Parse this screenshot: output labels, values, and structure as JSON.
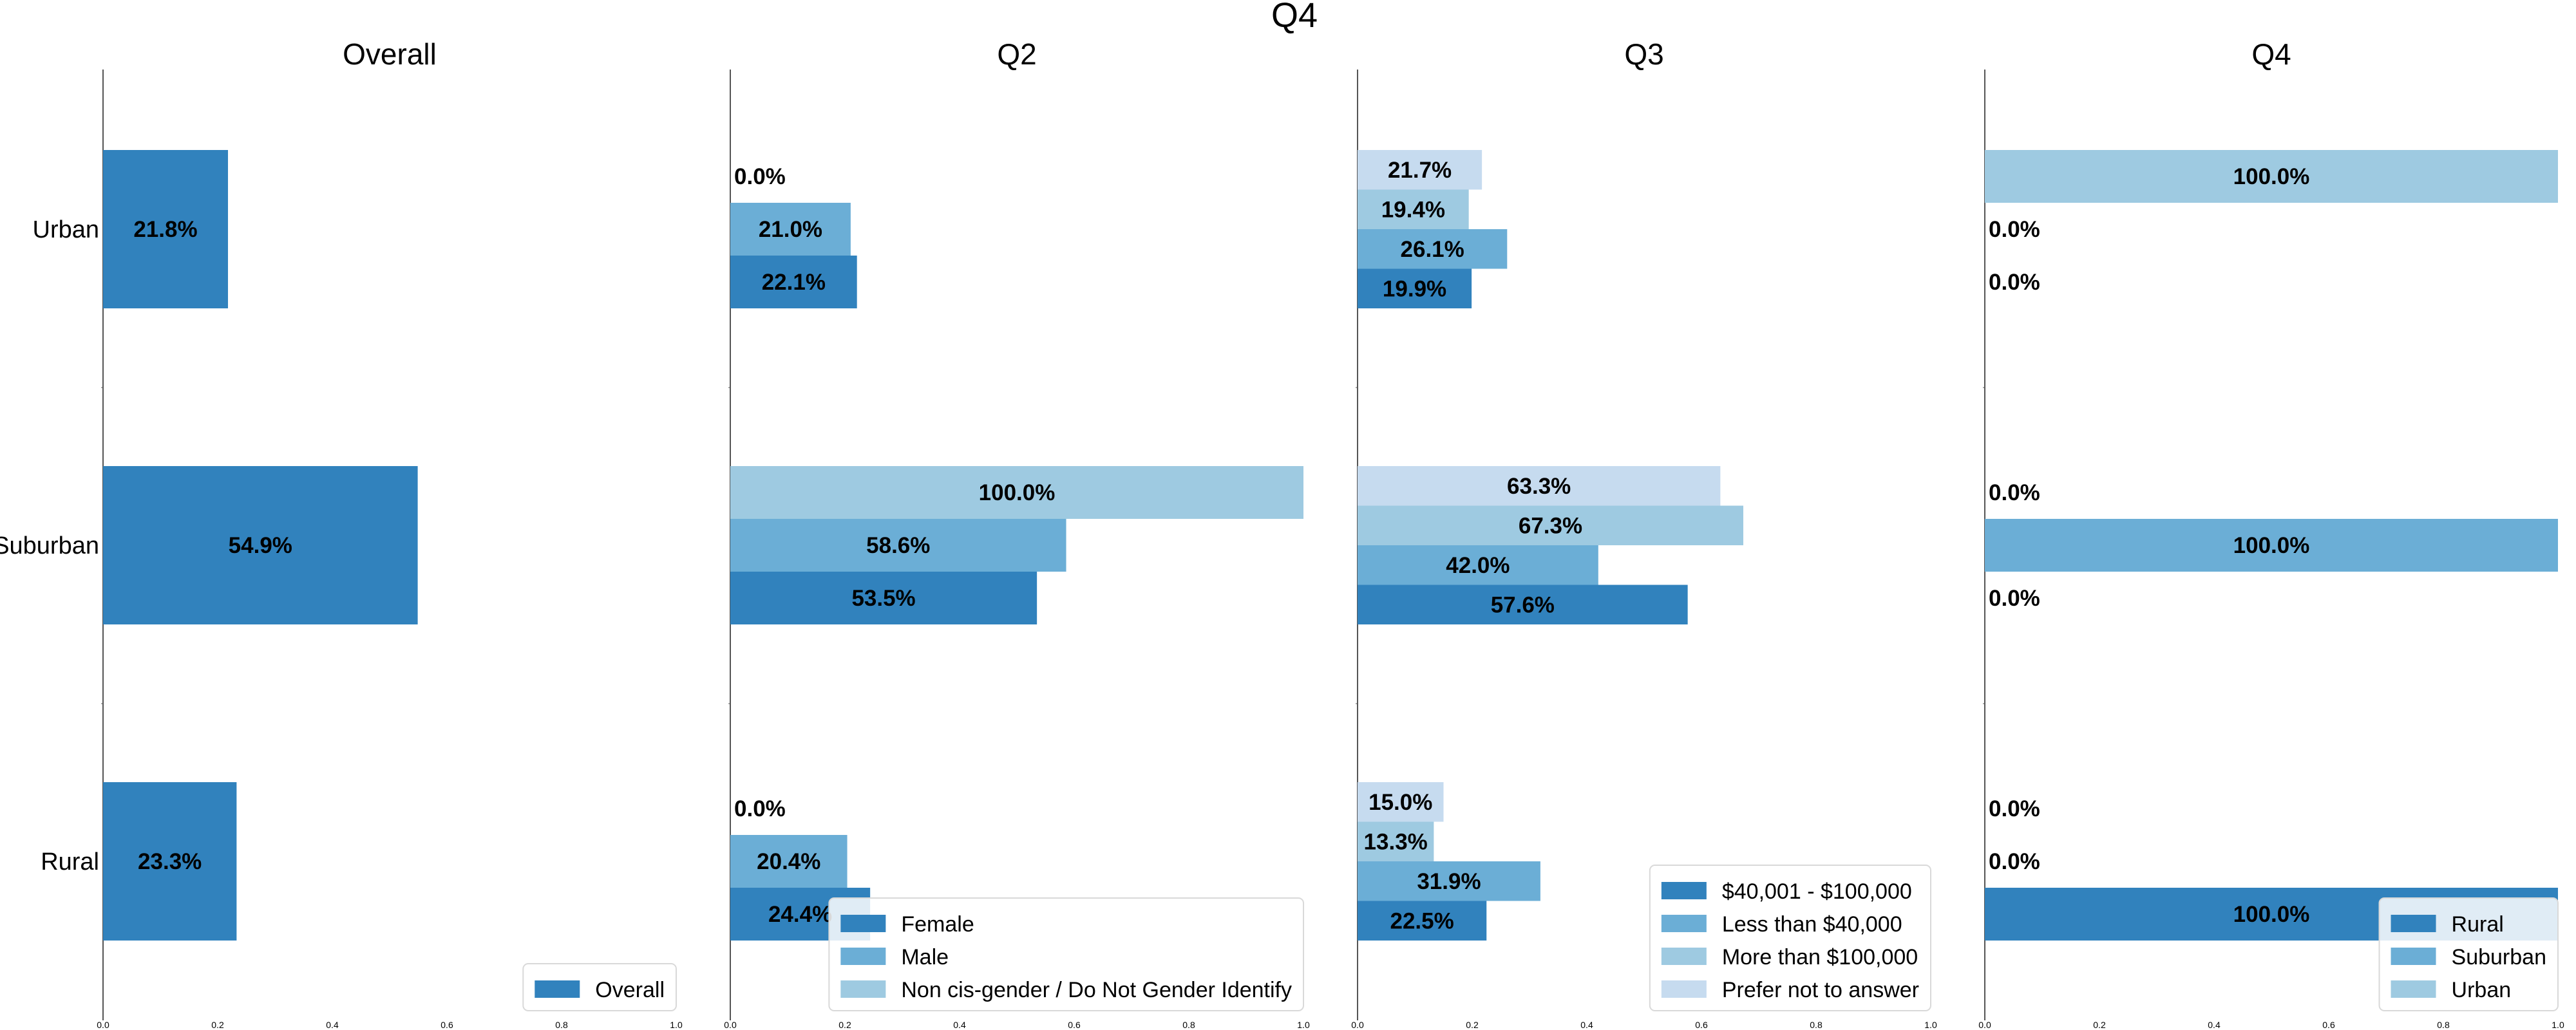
{
  "colors": {
    "c1": "#3182bd",
    "c2": "#6baed6",
    "c3": "#9ecae1",
    "c4": "#c6dbef",
    "axis": "#555555"
  },
  "chart_data": [
    {
      "title": "Overall",
      "type": "bar",
      "orientation": "horizontal",
      "categories": [
        "Urban",
        "Suburban",
        "Rural"
      ],
      "series": [
        {
          "name": "Overall",
          "values": [
            0.218,
            0.549,
            0.233
          ],
          "labels": [
            "21.8%",
            "54.9%",
            "23.3%"
          ]
        }
      ],
      "xlim": [
        0,
        1.0
      ],
      "xticks": [
        "0.0",
        "0.2",
        "0.4",
        "0.6",
        "0.8",
        "1.0"
      ],
      "legend": "lower-right"
    },
    {
      "title": "Q2",
      "type": "bar",
      "orientation": "horizontal",
      "categories": [
        "Urban",
        "Suburban",
        "Rural"
      ],
      "series": [
        {
          "name": "Female",
          "values": [
            0.221,
            0.535,
            0.244
          ],
          "labels": [
            "22.1%",
            "53.5%",
            "24.4%"
          ]
        },
        {
          "name": "Male",
          "values": [
            0.21,
            0.586,
            0.204
          ],
          "labels": [
            "21.0%",
            "58.6%",
            "20.4%"
          ]
        },
        {
          "name": "Non cis-gender / Do Not Gender Identify",
          "values": [
            0.0,
            1.0,
            0.0
          ],
          "labels": [
            "0.0%",
            "100.0%",
            "0.0%"
          ]
        }
      ],
      "xlim": [
        0,
        1.0
      ],
      "xticks": [
        "0.0",
        "0.2",
        "0.4",
        "0.6",
        "0.8",
        "1.0"
      ],
      "legend": "lower-right"
    },
    {
      "title": "Q3",
      "type": "bar",
      "orientation": "horizontal",
      "categories": [
        "Urban",
        "Suburban",
        "Rural"
      ],
      "series": [
        {
          "name": "$40,001 - $100,000",
          "values": [
            0.199,
            0.576,
            0.225
          ],
          "labels": [
            "19.9%",
            "57.6%",
            "22.5%"
          ]
        },
        {
          "name": "Less than $40,000",
          "values": [
            0.261,
            0.42,
            0.319
          ],
          "labels": [
            "26.1%",
            "42.0%",
            "31.9%"
          ]
        },
        {
          "name": "More than $100,000",
          "values": [
            0.194,
            0.673,
            0.133
          ],
          "labels": [
            "19.4%",
            "67.3%",
            "13.3%"
          ]
        },
        {
          "name": "Prefer not to answer",
          "values": [
            0.217,
            0.633,
            0.15
          ],
          "labels": [
            "21.7%",
            "63.3%",
            "15.0%"
          ]
        }
      ],
      "xlim": [
        0,
        1.0
      ],
      "xticks": [
        "0.0",
        "0.2",
        "0.4",
        "0.6",
        "0.8",
        "1.0"
      ],
      "legend": "lower-right"
    },
    {
      "title": "Q4",
      "type": "bar",
      "orientation": "horizontal",
      "categories": [
        "Urban",
        "Suburban",
        "Rural"
      ],
      "series": [
        {
          "name": "Rural",
          "values": [
            0.0,
            0.0,
            1.0
          ],
          "labels": [
            "0.0%",
            "0.0%",
            "100.0%"
          ]
        },
        {
          "name": "Suburban",
          "values": [
            0.0,
            1.0,
            0.0
          ],
          "labels": [
            "0.0%",
            "100.0%",
            "0.0%"
          ]
        },
        {
          "name": "Urban",
          "values": [
            1.0,
            0.0,
            0.0
          ],
          "labels": [
            "100.0%",
            "0.0%",
            "0.0%"
          ]
        }
      ],
      "xlim": [
        0,
        1.0
      ],
      "xticks": [
        "0.0",
        "0.2",
        "0.4",
        "0.6",
        "0.8",
        "1.0"
      ],
      "legend": "lower-right"
    }
  ],
  "figure": {
    "suptitle": "Q4"
  }
}
